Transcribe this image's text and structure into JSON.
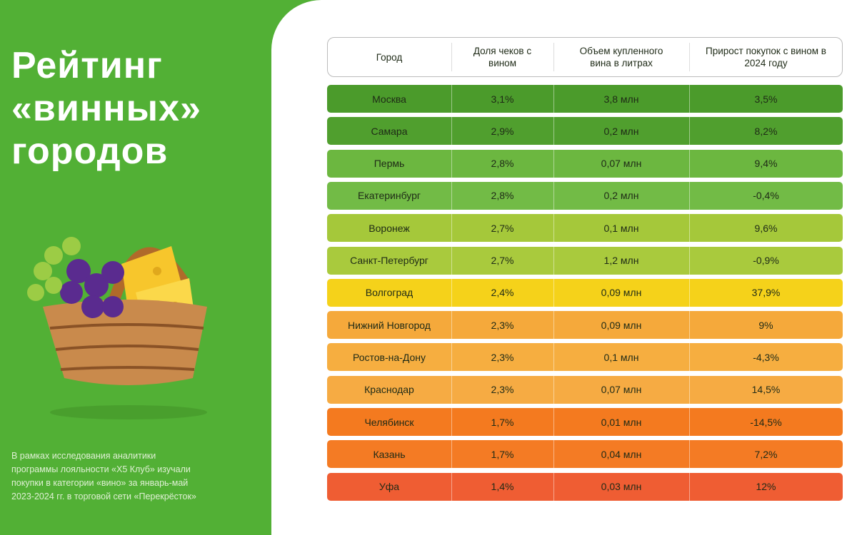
{
  "title_lines": [
    "Рейтинг",
    "«винных»",
    "городов"
  ],
  "footnote_lines": [
    "В рамках исследования аналитики",
    "программы лояльности «Х5 Клуб» изучали",
    "покупки в категории «вино» за январь-май",
    "2023-2024 гг. в торговой сети «Перекрёсток»"
  ],
  "table": {
    "header": [
      "Город",
      "Доля чеков с вином",
      "Объем купленного вина в литрах",
      "Прирост покупок с вином в 2024 году"
    ],
    "rows": [
      [
        "Москва",
        "3,1%",
        "3,8 млн",
        "3,5%"
      ],
      [
        "Самара",
        "2,9%",
        "0,2 млн",
        "8,2%"
      ],
      [
        "Пермь",
        "2,8%",
        "0,07 млн",
        "9,4%"
      ],
      [
        "Екатеринбург",
        "2,8%",
        "0,2 млн",
        "-0,4%"
      ],
      [
        "Воронеж",
        "2,7%",
        "0,1 млн",
        "9,6%"
      ],
      [
        "Санкт-Петербург",
        "2,7%",
        "1,2 млн",
        "-0,9%"
      ],
      [
        "Волгоград",
        "2,4%",
        "0,09 млн",
        "37,9%"
      ],
      [
        "Нижний Новгород",
        "2,3%",
        "0,09 млн",
        "9%"
      ],
      [
        "Ростов-на-Дону",
        "2,3%",
        "0,1 млн",
        "-4,3%"
      ],
      [
        "Краснодар",
        "2,3%",
        "0,07 млн",
        "14,5%"
      ],
      [
        "Челябинск",
        "1,7%",
        "0,01 млн",
        "-14,5%"
      ],
      [
        "Казань",
        "1,7%",
        "0,04 млн",
        "7,2%"
      ],
      [
        "Уфа",
        "1,4%",
        "0,03 млн",
        "12%"
      ]
    ],
    "row_colors": [
      "#4b9b2b",
      "#509f2e",
      "#6cb740",
      "#72bb46",
      "#a5c83a",
      "#a9ca3d",
      "#f5d21a",
      "#f5a93b",
      "#f6ae40",
      "#f6ab43",
      "#f47a1f",
      "#f47b24",
      "#ef5d33"
    ]
  }
}
